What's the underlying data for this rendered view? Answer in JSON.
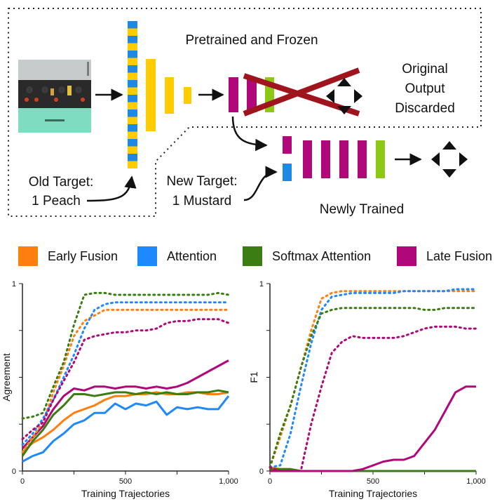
{
  "diagram": {
    "pretrained_label": "Pretrained and Frozen",
    "discarded_label_lines": [
      "Original",
      "Output",
      "Discarded"
    ],
    "old_target_lines": [
      "Old Target:",
      "1 Peach"
    ],
    "new_target_lines": [
      "New Target:",
      "1 Mustard"
    ],
    "newly_trained_label": "Newly Trained",
    "colors": {
      "yellow": "#FFCC00",
      "blue": "#1E88E5",
      "magenta": "#B0087A",
      "lime": "#8CC814",
      "dark_red": "#A0141E"
    }
  },
  "legend": [
    {
      "name": "Early Fusion",
      "color": "#FF7F0E"
    },
    {
      "name": "Attention",
      "color": "#1E88FF"
    },
    {
      "name": "Softmax Attention",
      "color": "#3A7D12"
    },
    {
      "name": "Late Fusion",
      "color": "#B0087A"
    }
  ],
  "chart_data": [
    {
      "type": "line",
      "xlabel": "Training Trajectories",
      "ylabel": "Agreement",
      "xlim": [
        0,
        1000
      ],
      "ylim": [
        0,
        1
      ],
      "xticks": [
        "0",
        "500",
        "1,000"
      ],
      "yticks": [
        "0",
        "1"
      ],
      "x": [
        0,
        50,
        100,
        150,
        200,
        250,
        300,
        350,
        400,
        450,
        500,
        550,
        600,
        650,
        700,
        750,
        800,
        850,
        900,
        950,
        1000
      ],
      "series": [
        {
          "method": "Early Fusion",
          "style": "solid",
          "color": "#FF7F0E",
          "values": [
            0.1,
            0.15,
            0.18,
            0.22,
            0.27,
            0.31,
            0.33,
            0.35,
            0.38,
            0.4,
            0.4,
            0.41,
            0.41,
            0.42,
            0.41,
            0.41,
            0.42,
            0.42,
            0.41,
            0.41,
            0.42
          ]
        },
        {
          "method": "Attention",
          "style": "solid",
          "color": "#1E88FF",
          "values": [
            0.05,
            0.08,
            0.1,
            0.16,
            0.2,
            0.25,
            0.27,
            0.31,
            0.31,
            0.36,
            0.33,
            0.36,
            0.35,
            0.37,
            0.3,
            0.34,
            0.33,
            0.34,
            0.33,
            0.33,
            0.4
          ]
        },
        {
          "method": "Softmax Attention",
          "style": "solid",
          "color": "#3A7D12",
          "values": [
            0.08,
            0.16,
            0.22,
            0.3,
            0.35,
            0.41,
            0.41,
            0.4,
            0.41,
            0.42,
            0.42,
            0.41,
            0.42,
            0.41,
            0.42,
            0.41,
            0.41,
            0.42,
            0.42,
            0.43,
            0.42
          ]
        },
        {
          "method": "Late Fusion",
          "style": "solid",
          "color": "#B0087A",
          "values": [
            0.12,
            0.18,
            0.24,
            0.33,
            0.4,
            0.44,
            0.43,
            0.45,
            0.45,
            0.44,
            0.45,
            0.45,
            0.44,
            0.45,
            0.44,
            0.45,
            0.47,
            0.5,
            0.53,
            0.56,
            0.59
          ]
        },
        {
          "method": "Early Fusion",
          "style": "dotted",
          "color": "#FF7F0E",
          "values": [
            0.1,
            0.18,
            0.26,
            0.42,
            0.56,
            0.72,
            0.8,
            0.83,
            0.86,
            0.86,
            0.86,
            0.86,
            0.86,
            0.86,
            0.86,
            0.86,
            0.86,
            0.86,
            0.86,
            0.86,
            0.86
          ]
        },
        {
          "method": "Attention",
          "style": "dotted",
          "color": "#1E88FF",
          "values": [
            0.14,
            0.2,
            0.28,
            0.38,
            0.5,
            0.62,
            0.76,
            0.86,
            0.89,
            0.9,
            0.9,
            0.9,
            0.9,
            0.9,
            0.9,
            0.9,
            0.9,
            0.9,
            0.9,
            0.9,
            0.9
          ]
        },
        {
          "method": "Softmax Attention",
          "style": "dotted",
          "color": "#3A7D12",
          "values": [
            0.28,
            0.29,
            0.31,
            0.45,
            0.58,
            0.78,
            0.94,
            0.95,
            0.95,
            0.94,
            0.94,
            0.94,
            0.94,
            0.94,
            0.94,
            0.94,
            0.94,
            0.94,
            0.94,
            0.95,
            0.94
          ]
        },
        {
          "method": "Late Fusion",
          "style": "dotted",
          "color": "#B0087A",
          "values": [
            0.17,
            0.22,
            0.26,
            0.38,
            0.48,
            0.58,
            0.7,
            0.72,
            0.73,
            0.74,
            0.74,
            0.75,
            0.75,
            0.76,
            0.79,
            0.8,
            0.8,
            0.81,
            0.81,
            0.81,
            0.79
          ]
        }
      ]
    },
    {
      "type": "line",
      "xlabel": "Training Trajectories",
      "ylabel": "F1",
      "xlim": [
        0,
        1000
      ],
      "ylim": [
        0,
        1
      ],
      "xticks": [
        "0",
        "500",
        "1,000"
      ],
      "yticks": [
        "0",
        "1"
      ],
      "x": [
        0,
        50,
        100,
        150,
        200,
        250,
        300,
        350,
        400,
        450,
        500,
        550,
        600,
        650,
        700,
        750,
        800,
        850,
        900,
        950,
        1000
      ],
      "series": [
        {
          "method": "Early Fusion",
          "style": "solid",
          "color": "#FF7F0E",
          "values": [
            0.02,
            0.01,
            0.01,
            0.0,
            0.0,
            0.0,
            0.0,
            0.0,
            0.0,
            0.0,
            0.0,
            0.0,
            0.0,
            0.0,
            0.0,
            0.0,
            0.0,
            0.0,
            0.0,
            0.0,
            0.0
          ]
        },
        {
          "method": "Attention",
          "style": "solid",
          "color": "#1E88FF",
          "values": [
            0.0,
            0.0,
            0.0,
            0.0,
            0.0,
            0.0,
            0.0,
            0.0,
            0.0,
            0.0,
            0.0,
            0.0,
            0.0,
            0.0,
            0.0,
            0.0,
            0.0,
            0.0,
            0.0,
            0.0,
            0.0
          ]
        },
        {
          "method": "Softmax Attention",
          "style": "solid",
          "color": "#3A7D12",
          "values": [
            0.01,
            0.01,
            0.01,
            0.0,
            0.0,
            0.0,
            0.0,
            0.0,
            0.0,
            0.0,
            0.0,
            0.0,
            0.0,
            0.0,
            0.0,
            0.0,
            0.0,
            0.0,
            0.0,
            0.0,
            0.0
          ]
        },
        {
          "method": "Late Fusion",
          "style": "solid",
          "color": "#B0087A",
          "values": [
            0.0,
            0.0,
            0.0,
            0.0,
            0.0,
            0.0,
            0.0,
            0.0,
            0.0,
            0.01,
            0.03,
            0.05,
            0.06,
            0.06,
            0.08,
            0.15,
            0.22,
            0.32,
            0.42,
            0.45,
            0.45
          ]
        },
        {
          "method": "Early Fusion",
          "style": "dotted",
          "color": "#FF7F0E",
          "values": [
            0.02,
            0.18,
            0.35,
            0.55,
            0.75,
            0.92,
            0.95,
            0.96,
            0.96,
            0.96,
            0.96,
            0.96,
            0.96,
            0.96,
            0.96,
            0.96,
            0.96,
            0.96,
            0.96,
            0.96,
            0.96
          ]
        },
        {
          "method": "Attention",
          "style": "dotted",
          "color": "#1E88FF",
          "values": [
            0.02,
            0.03,
            0.2,
            0.45,
            0.68,
            0.86,
            0.93,
            0.94,
            0.95,
            0.95,
            0.95,
            0.95,
            0.95,
            0.96,
            0.96,
            0.96,
            0.96,
            0.96,
            0.97,
            0.97,
            0.97
          ]
        },
        {
          "method": "Softmax Attention",
          "style": "dotted",
          "color": "#3A7D12",
          "values": [
            0.02,
            0.2,
            0.35,
            0.55,
            0.72,
            0.84,
            0.86,
            0.87,
            0.87,
            0.87,
            0.87,
            0.87,
            0.87,
            0.87,
            0.87,
            0.86,
            0.86,
            0.87,
            0.87,
            0.87,
            0.87
          ]
        },
        {
          "method": "Late Fusion",
          "style": "dotted",
          "color": "#B0087A",
          "values": [
            0.02,
            0.0,
            0.0,
            0.0,
            0.25,
            0.45,
            0.63,
            0.69,
            0.72,
            0.71,
            0.71,
            0.71,
            0.71,
            0.72,
            0.74,
            0.76,
            0.77,
            0.77,
            0.77,
            0.76,
            0.76
          ]
        }
      ]
    }
  ]
}
